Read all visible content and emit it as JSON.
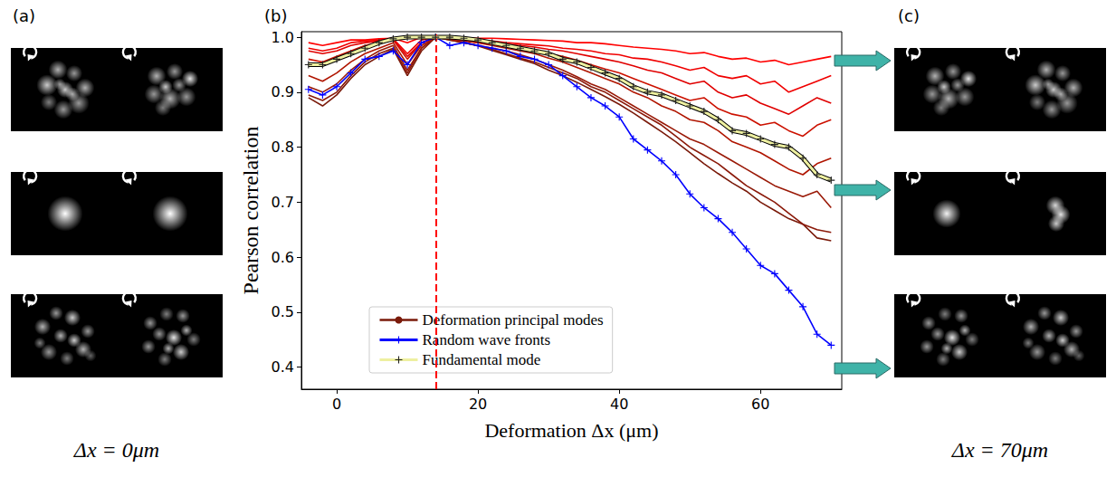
{
  "panel_labels": [
    "(a)",
    "(b)",
    "(c)"
  ],
  "image_captions": [
    "Δx = 0μm",
    "Δx = 70μm"
  ],
  "chart_data": {
    "type": "line",
    "xlabel": "Deformation Δx (μm)",
    "ylabel": "Pearson correlation",
    "x": [
      -4,
      -2,
      0,
      2,
      4,
      6,
      8,
      10,
      12,
      14,
      16,
      18,
      20,
      22,
      24,
      26,
      28,
      30,
      32,
      34,
      36,
      38,
      40,
      42,
      44,
      46,
      48,
      50,
      52,
      54,
      56,
      58,
      60,
      62,
      64,
      66,
      68,
      70
    ],
    "series": [
      {
        "name": "Deformation principal modes",
        "marker": "none",
        "line_style": "solid",
        "colors": [
          "#7a1a0a",
          "#8b1a0a",
          "#9a1a08",
          "#b01500",
          "#cc1100",
          "#e00000",
          "#f00000",
          "#ff0000"
        ],
        "values": [
          [
            0.89,
            0.875,
            0.895,
            0.925,
            0.95,
            0.965,
            0.978,
            0.93,
            0.975,
            1.0,
            0.995,
            0.99,
            0.984,
            0.976,
            0.968,
            0.96,
            0.952,
            0.94,
            0.93,
            0.918,
            0.905,
            0.892,
            0.878,
            0.862,
            0.845,
            0.828,
            0.81,
            0.79,
            0.77,
            0.752,
            0.735,
            0.72,
            0.7,
            0.685,
            0.67,
            0.66,
            0.635,
            0.63
          ],
          [
            0.895,
            0.885,
            0.9,
            0.93,
            0.955,
            0.97,
            0.98,
            0.935,
            0.98,
            1.0,
            0.995,
            0.99,
            0.985,
            0.978,
            0.97,
            0.962,
            0.955,
            0.945,
            0.935,
            0.925,
            0.91,
            0.9,
            0.885,
            0.87,
            0.855,
            0.84,
            0.82,
            0.8,
            0.785,
            0.77,
            0.75,
            0.73,
            0.715,
            0.7,
            0.68,
            0.66,
            0.65,
            0.645
          ],
          [
            0.91,
            0.9,
            0.915,
            0.94,
            0.96,
            0.975,
            0.985,
            0.94,
            0.98,
            1.0,
            0.996,
            0.99,
            0.985,
            0.98,
            0.975,
            0.968,
            0.96,
            0.95,
            0.94,
            0.928,
            0.915,
            0.905,
            0.89,
            0.875,
            0.86,
            0.845,
            0.83,
            0.815,
            0.805,
            0.79,
            0.775,
            0.76,
            0.745,
            0.73,
            0.72,
            0.71,
            0.72,
            0.69
          ],
          [
            0.93,
            0.92,
            0.935,
            0.955,
            0.97,
            0.98,
            0.99,
            0.95,
            0.985,
            1.0,
            0.997,
            0.993,
            0.99,
            0.985,
            0.98,
            0.975,
            0.97,
            0.962,
            0.955,
            0.945,
            0.935,
            0.925,
            0.915,
            0.9,
            0.89,
            0.875,
            0.865,
            0.85,
            0.845,
            0.83,
            0.81,
            0.8,
            0.79,
            0.775,
            0.76,
            0.75,
            0.77,
            0.78
          ],
          [
            0.96,
            0.955,
            0.965,
            0.975,
            0.985,
            0.99,
            0.995,
            0.96,
            0.99,
            1.0,
            0.998,
            0.995,
            0.99,
            0.987,
            0.983,
            0.98,
            0.975,
            0.97,
            0.965,
            0.958,
            0.95,
            0.942,
            0.935,
            0.925,
            0.915,
            0.905,
            0.895,
            0.885,
            0.89,
            0.87,
            0.86,
            0.855,
            0.84,
            0.845,
            0.83,
            0.82,
            0.84,
            0.85
          ],
          [
            0.975,
            0.97,
            0.975,
            0.985,
            0.99,
            0.993,
            0.996,
            0.965,
            0.99,
            1.0,
            0.999,
            0.996,
            0.993,
            0.99,
            0.987,
            0.985,
            0.982,
            0.978,
            0.975,
            0.97,
            0.965,
            0.96,
            0.955,
            0.948,
            0.94,
            0.935,
            0.925,
            0.915,
            0.92,
            0.9,
            0.89,
            0.895,
            0.88,
            0.87,
            0.86,
            0.875,
            0.89,
            0.88
          ],
          [
            0.98,
            0.975,
            0.98,
            0.99,
            0.993,
            0.995,
            0.997,
            0.97,
            0.995,
            1.0,
            0.998,
            0.997,
            0.995,
            0.993,
            0.99,
            0.988,
            0.986,
            0.984,
            0.98,
            0.978,
            0.975,
            0.97,
            0.968,
            0.962,
            0.96,
            0.955,
            0.948,
            0.94,
            0.945,
            0.93,
            0.925,
            0.93,
            0.915,
            0.92,
            0.9,
            0.91,
            0.92,
            0.93
          ],
          [
            0.99,
            0.985,
            0.99,
            0.995,
            0.995,
            0.997,
            0.998,
            0.99,
            1.0,
            1.0,
            1.0,
            0.999,
            0.998,
            0.998,
            0.997,
            0.996,
            0.995,
            0.994,
            0.993,
            0.99,
            0.99,
            0.988,
            0.985,
            0.982,
            0.98,
            0.978,
            0.975,
            0.97,
            0.972,
            0.965,
            0.96,
            0.962,
            0.955,
            0.958,
            0.95,
            0.955,
            0.96,
            0.965
          ]
        ]
      },
      {
        "name": "Random wave fronts",
        "color": "#0000ff",
        "marker": "plus",
        "line_style": "solid",
        "values": [
          0.905,
          0.895,
          0.91,
          0.935,
          0.96,
          0.965,
          0.975,
          0.95,
          0.99,
          1.0,
          0.985,
          0.99,
          0.985,
          0.98,
          0.975,
          0.965,
          0.96,
          0.95,
          0.93,
          0.91,
          0.89,
          0.875,
          0.855,
          0.815,
          0.795,
          0.775,
          0.75,
          0.715,
          0.69,
          0.67,
          0.645,
          0.615,
          0.585,
          0.57,
          0.54,
          0.51,
          0.46,
          0.44
        ]
      },
      {
        "name": "Fundamental mode",
        "color": "#eef0a0",
        "marker": "plus",
        "line_style": "solid",
        "values": [
          0.95,
          0.95,
          0.96,
          0.97,
          0.98,
          0.99,
          0.997,
          1.0,
          1.0,
          1.0,
          1.0,
          0.998,
          0.995,
          0.99,
          0.985,
          0.98,
          0.975,
          0.97,
          0.96,
          0.955,
          0.945,
          0.935,
          0.925,
          0.91,
          0.9,
          0.895,
          0.885,
          0.875,
          0.865,
          0.85,
          0.83,
          0.825,
          0.815,
          0.805,
          0.8,
          0.78,
          0.75,
          0.74
        ]
      }
    ],
    "vline": {
      "x": 14,
      "color": "#ff0000",
      "line_style": "dashed"
    },
    "xlim": [
      -5,
      71.5
    ],
    "ylim": [
      0.36,
      1.01
    ],
    "xticks": [
      0,
      20,
      40,
      60
    ],
    "yticks": [
      0.4,
      0.5,
      0.6,
      0.7,
      0.8,
      0.9,
      {
        "value": 1,
        "label": "1.0"
      }
    ],
    "grid": false,
    "legend": "lower left"
  }
}
